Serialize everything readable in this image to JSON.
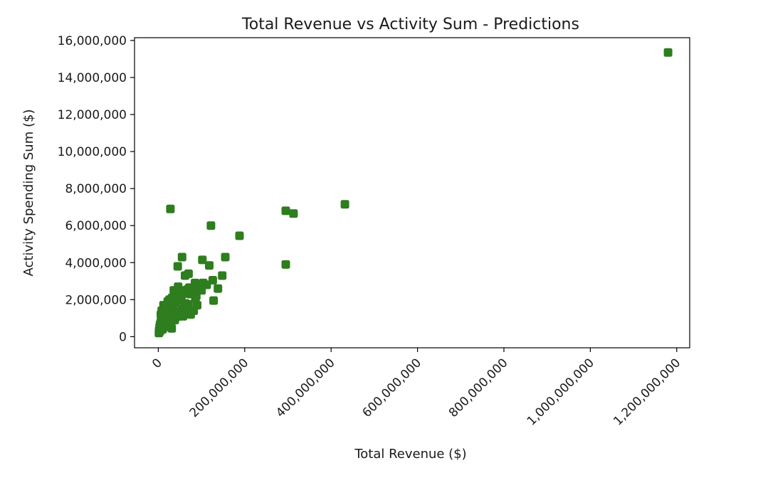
{
  "chart_data": {
    "type": "scatter",
    "title": "Total Revenue vs Activity Sum - Predictions",
    "xlabel": "Total Revenue ($)",
    "ylabel": "Activity Spending Sum ($)",
    "xlim": [
      -55000000,
      1230000000
    ],
    "ylim": [
      -600000,
      16150000
    ],
    "x_ticks": [
      0,
      200000000,
      400000000,
      600000000,
      800000000,
      1000000000,
      1200000000
    ],
    "x_tick_labels": [
      "0",
      "200,000,000",
      "400,000,000",
      "600,000,000",
      "800,000,000",
      "1,000,000,000",
      "1,200,000,000"
    ],
    "y_ticks": [
      0,
      2000000,
      4000000,
      6000000,
      8000000,
      10000000,
      12000000,
      14000000,
      16000000
    ],
    "y_tick_labels": [
      "0",
      "2,000,000",
      "4,000,000",
      "6,000,000",
      "8,000,000",
      "10,000,000",
      "12,000,000",
      "14,000,000",
      "16,000,000"
    ],
    "grid": false,
    "marker": "square",
    "color": "#2e7d1e",
    "series": [
      {
        "x": [
          1180000000,
          432000000,
          313000000,
          295000000,
          295000000,
          188000000,
          122000000,
          28000000,
          155000000,
          102000000,
          118000000,
          55000000,
          148000000,
          126000000,
          138000000,
          128000000,
          112000000,
          45000000,
          70000000,
          62000000,
          85000000,
          92000000,
          78000000,
          58000000,
          66000000,
          74000000,
          52000000,
          48000000,
          40000000,
          36000000,
          32000000,
          28000000,
          24000000,
          20000000,
          17000000,
          14000000,
          12000000,
          10000000,
          8000000,
          6000000,
          4000000,
          3000000,
          2000000,
          1500000,
          5000000,
          7000000,
          9000000,
          11000000,
          13000000,
          15000000,
          18000000,
          22000000,
          26000000,
          30000000,
          34000000,
          38000000,
          42000000,
          46000000,
          50000000,
          54000000,
          60000000,
          64000000,
          68000000,
          72000000,
          76000000,
          80000000,
          84000000,
          88000000,
          96000000,
          104000000,
          25000000,
          35000000,
          45000000,
          55000000,
          65000000,
          15000000,
          20000000,
          30000000,
          40000000,
          50000000,
          60000000,
          70000000,
          10000000,
          18000000,
          28000000,
          38000000,
          48000000,
          58000000,
          68000000,
          12000000,
          22000000,
          32000000,
          42000000,
          52000000,
          62000000,
          8000000,
          16000000,
          24000000,
          34000000,
          44000000,
          54000000,
          6000000,
          14000000,
          26000000,
          36000000,
          46000000,
          4000000,
          9000000,
          19000000,
          29000000,
          39000000,
          82000000,
          90000000,
          75000000,
          86000000,
          100000000,
          57000000,
          63000000,
          31000000,
          27000000,
          21000000
        ],
        "y": [
          15350000,
          7150000,
          6650000,
          6800000,
          3900000,
          5450000,
          6000000,
          6900000,
          4300000,
          4150000,
          3850000,
          4300000,
          3300000,
          3050000,
          2600000,
          1950000,
          2800000,
          3800000,
          3400000,
          3300000,
          2900000,
          2800000,
          2600000,
          2500000,
          2400000,
          2300000,
          2200000,
          2100000,
          1900000,
          1800000,
          1700000,
          1600000,
          1500000,
          1400000,
          1300000,
          1200000,
          1100000,
          1000000,
          900000,
          800000,
          650000,
          500000,
          350000,
          200000,
          700000,
          850000,
          950000,
          1050000,
          1150000,
          1250000,
          1350000,
          1450000,
          1550000,
          1650000,
          1750000,
          1850000,
          1950000,
          2050000,
          2150000,
          2250000,
          2350000,
          2450000,
          2550000,
          2650000,
          2500000,
          2400000,
          2300000,
          2200000,
          2700000,
          2900000,
          900000,
          1100000,
          1300000,
          1500000,
          1700000,
          600000,
          750000,
          950000,
          1150000,
          1350000,
          1550000,
          1750000,
          400000,
          550000,
          700000,
          900000,
          1100000,
          1300000,
          1500000,
          1700000,
          1900000,
          2100000,
          2300000,
          2000000,
          1800000,
          1400000,
          1600000,
          1800000,
          2000000,
          2200000,
          2400000,
          1200000,
          1400000,
          2000000,
          2500000,
          2700000,
          300000,
          450000,
          600000,
          800000,
          1000000,
          1400000,
          1700000,
          1200000,
          2100000,
          2500000,
          1100000,
          1300000,
          450000,
          600000,
          800000
        ]
      }
    ]
  }
}
